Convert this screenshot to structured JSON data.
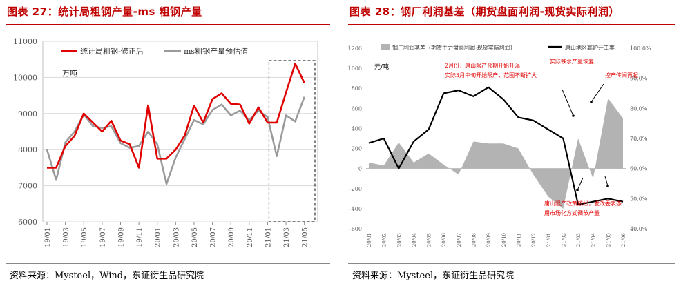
{
  "left": {
    "title": "图表 27：统计局粗钢产量-ms 粗钢产量",
    "source": "资料来源：Mysteel，Wind，东证衍生品研究院",
    "chart_data": {
      "type": "line",
      "unit_label": "万吨",
      "categories": [
        "19/01",
        "19/02",
        "19/03",
        "19/04",
        "19/05",
        "19/06",
        "19/07",
        "19/08",
        "19/09",
        "19/10",
        "19/11",
        "19/12",
        "20/01",
        "20/02",
        "20/03",
        "20/04",
        "20/05",
        "20/06",
        "20/07",
        "20/08",
        "20/09",
        "20/10",
        "20/11",
        "20/12",
        "21/01",
        "21/02",
        "21/03",
        "21/04",
        "21/05",
        "21/06"
      ],
      "tick_labels": [
        "19/01",
        "19/03",
        "19/05",
        "19/07",
        "19/09",
        "19/11",
        "20/01",
        "20/03",
        "20/05",
        "20/07",
        "20/09",
        "20/11",
        "21/01",
        "21/03",
        "21/05"
      ],
      "series": [
        {
          "name": "统计局粗钢-修正后",
          "color": "#e00000",
          "values": [
            7500,
            7500,
            8100,
            8380,
            9000,
            8750,
            8500,
            8800,
            8250,
            8150,
            7500,
            9230,
            7750,
            7750,
            8000,
            8400,
            9220,
            8750,
            9400,
            9560,
            9270,
            9250,
            8720,
            9170,
            8750,
            8750,
            9580,
            10380,
            9850,
            null
          ]
        },
        {
          "name": "ms粗钢产量预估值",
          "color": "#9a9a9a",
          "values": [
            8000,
            7160,
            8200,
            8500,
            8980,
            8650,
            8600,
            8650,
            8180,
            8050,
            8100,
            8500,
            8150,
            7050,
            7780,
            8300,
            8820,
            8700,
            9100,
            9250,
            8950,
            9080,
            8820,
            9080,
            8900,
            7820,
            8950,
            8780,
            9460,
            null
          ]
        }
      ],
      "ylim": [
        6000,
        11000
      ],
      "yticks": [
        6000,
        7000,
        8000,
        9000,
        10000,
        11000
      ],
      "highlight_box": {
        "from": "21/01",
        "to": "21/06",
        "style": "dashed"
      }
    }
  },
  "right": {
    "title": "图表 28：钢厂利润基差（期货盘面利润-现货实际利润）",
    "source": "资料来源：Mysteel，东证衍生品研究院",
    "chart_data": {
      "type": "area",
      "unit_label": "元/吨",
      "categories": [
        "20/01",
        "20/02",
        "20/03",
        "20/04",
        "20/05",
        "20/06",
        "20/07",
        "20/08",
        "20/09",
        "20/10",
        "20/11",
        "20/12",
        "21/01",
        "21/02",
        "21/03",
        "21/04",
        "21/05",
        "21/06"
      ],
      "series": [
        {
          "name": "钢厂利润基差（期货主力盘面利润-现货实际利润）",
          "axis": "left",
          "style": "area",
          "color": "#b3b3b3",
          "values": [
            60,
            30,
            260,
            60,
            150,
            40,
            -60,
            270,
            250,
            250,
            200,
            -60,
            -280,
            -400,
            300,
            -100,
            700,
            500
          ]
        },
        {
          "name": "唐山地区高炉开工率",
          "axis": "right",
          "style": "line",
          "color": "#000000",
          "unit": "%",
          "values": [
            68.5,
            70,
            60,
            69,
            73,
            85,
            86,
            84,
            87,
            83,
            77,
            76,
            73,
            70,
            48,
            49,
            50,
            49
          ]
        }
      ],
      "ylim_left": [
        -600,
        1200
      ],
      "yticks_left": [
        -600,
        -400,
        -200,
        0,
        200,
        400,
        600,
        800,
        1000,
        1200
      ],
      "ylim_right": [
        40,
        100
      ],
      "yticks_right": [
        "40.0%",
        "50.0%",
        "60.0%",
        "70.0%",
        "80.0%",
        "90.0%",
        "100.0%"
      ],
      "annotations": [
        {
          "text": "2月份，唐山限产预期开始升温",
          "color": "#e00000"
        },
        {
          "text": "实际3月中旬开始限产，范围不断扩大",
          "color": "#e00000"
        },
        {
          "text": "实际铁水产量恢复",
          "color": "#e00000"
        },
        {
          "text": "控产传闻再起",
          "color": "#e00000"
        },
        {
          "text": "唐山限产政策放松，发改委表态",
          "color": "#e00000"
        },
        {
          "text": "用市场化方式调节产量",
          "color": "#e00000"
        }
      ]
    }
  }
}
